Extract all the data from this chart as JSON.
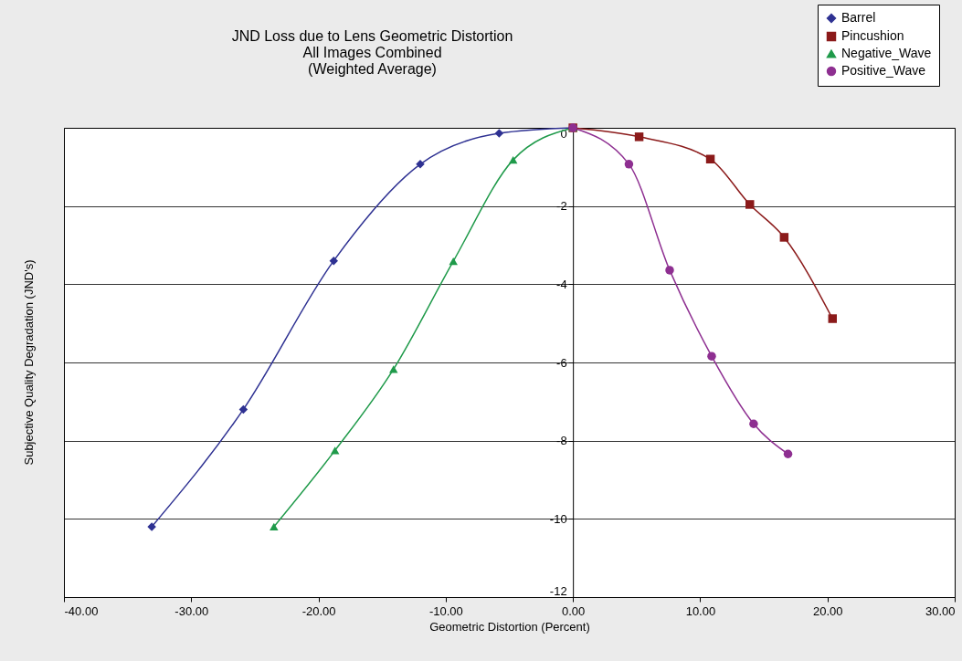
{
  "chart_data": {
    "type": "line",
    "title": "JND Loss due to Lens Geometric Distortion",
    "subtitle": "All Images Combined\n(Weighted Average)",
    "xlabel": "Geometric Distortion (Percent)",
    "ylabel": "Subjective Quality Degradation (JND's)",
    "series": [
      {
        "name": "Barrel",
        "color": "#2e3192",
        "marker": "diamond",
        "x": [
          -33.1,
          -25.9,
          -18.8,
          -12.0,
          -5.8,
          0
        ],
        "values": [
          -10.2,
          -7.2,
          -3.4,
          -0.93,
          -0.14,
          0
        ]
      },
      {
        "name": "Pincushion",
        "color": "#8b1a1a",
        "marker": "square",
        "x": [
          0,
          5.2,
          10.8,
          13.9,
          16.6,
          20.4
        ],
        "values": [
          0,
          -0.23,
          -0.8,
          -1.96,
          -2.8,
          -4.88
        ]
      },
      {
        "name": "Negative_Wave",
        "color": "#1f9a4a",
        "marker": "triangle",
        "x": [
          -23.5,
          -18.7,
          -14.1,
          -9.4,
          -4.7,
          0
        ],
        "values": [
          -10.2,
          -8.25,
          -6.17,
          -3.41,
          -0.82,
          0
        ]
      },
      {
        "name": "Positive_Wave",
        "color": "#8e2f91",
        "marker": "circle",
        "x": [
          0,
          4.4,
          7.6,
          10.9,
          14.2,
          16.9
        ],
        "values": [
          0,
          -0.93,
          -3.64,
          -5.84,
          -7.57,
          -8.34
        ]
      }
    ],
    "xlim": [
      -40,
      30
    ],
    "xticks": [
      {
        "value": -40,
        "label": "-40.00"
      },
      {
        "value": -30,
        "label": "-30.00"
      },
      {
        "value": -20,
        "label": "-20.00"
      },
      {
        "value": -10,
        "label": "-10.00"
      },
      {
        "value": 0,
        "label": "0.00"
      },
      {
        "value": 10,
        "label": "10.00"
      },
      {
        "value": 20,
        "label": "20.00"
      },
      {
        "value": 30,
        "label": "30.00"
      }
    ],
    "ylim": [
      -12,
      0
    ],
    "yticks": [
      0,
      -2,
      -4,
      -6,
      -8,
      -10,
      -12
    ],
    "grid": "y",
    "legend": "top right",
    "line_style": "solid"
  }
}
